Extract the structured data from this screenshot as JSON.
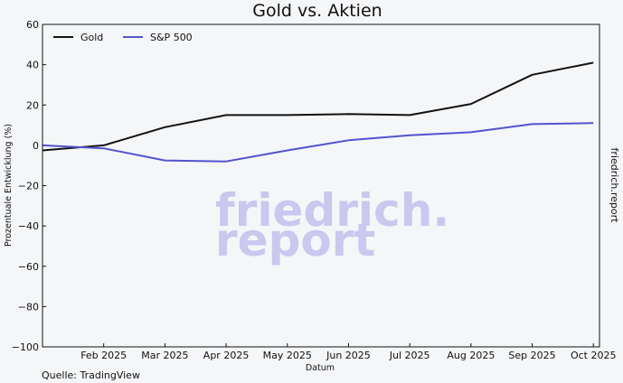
{
  "chart_data": {
    "type": "line",
    "title": "Gold vs. Aktien",
    "xlabel": "Datum",
    "ylabel": "Prozentuale Entwicklung (%)",
    "ylim": [
      -100,
      60
    ],
    "yticks": [
      60,
      40,
      20,
      0,
      -20,
      -40,
      -60,
      -80,
      -100
    ],
    "x_range": [
      0,
      9.1
    ],
    "categories": [
      "Feb 2025",
      "Mar 2025",
      "Apr 2025",
      "May 2025",
      "Jun 2025",
      "Jul 2025",
      "Aug 2025",
      "Sep 2025",
      "Oct 2025"
    ],
    "category_positions": [
      1,
      2,
      3,
      4,
      5,
      6,
      7,
      8,
      9
    ],
    "series": [
      {
        "name": "Gold",
        "color": "#111111",
        "x": [
          0,
          1,
          2,
          3,
          4,
          5,
          6,
          7,
          8,
          9
        ],
        "values": [
          -2.5,
          0,
          9,
          15,
          15,
          15.5,
          15,
          20.5,
          35,
          41
        ]
      },
      {
        "name": "S&P 500",
        "color": "#5353cf",
        "x": [
          0,
          1,
          2,
          3,
          4,
          5,
          6,
          7,
          8,
          9
        ],
        "values": [
          0,
          -1.5,
          -7.5,
          -8,
          -2.5,
          2.5,
          5,
          6.5,
          10.5,
          11
        ]
      }
    ],
    "legend_position": "top-left",
    "grid": false
  },
  "watermark": {
    "line1": "friedrich.",
    "line2": "report"
  },
  "side_label": "friedrich.report",
  "source": "Quelle: TradingView"
}
